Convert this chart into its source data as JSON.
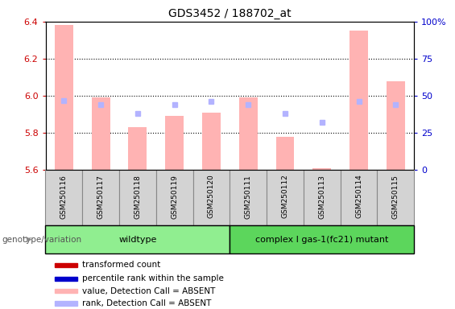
{
  "title": "GDS3452 / 188702_at",
  "samples": [
    "GSM250116",
    "GSM250117",
    "GSM250118",
    "GSM250119",
    "GSM250120",
    "GSM250111",
    "GSM250112",
    "GSM250113",
    "GSM250114",
    "GSM250115"
  ],
  "transformed_count": [
    6.38,
    5.99,
    5.83,
    5.89,
    5.91,
    5.99,
    5.78,
    5.61,
    6.35,
    6.08
  ],
  "percentile_rank": [
    47,
    44,
    38,
    44,
    46,
    44,
    38,
    32,
    46,
    44
  ],
  "detection_call": [
    "ABSENT",
    "ABSENT",
    "ABSENT",
    "ABSENT",
    "ABSENT",
    "ABSENT",
    "ABSENT",
    "ABSENT",
    "ABSENT",
    "ABSENT"
  ],
  "ylim_left": [
    5.6,
    6.4
  ],
  "ylim_right": [
    0,
    100
  ],
  "yticks_left": [
    5.6,
    5.8,
    6.0,
    6.2,
    6.4
  ],
  "yticks_right": [
    0,
    25,
    50,
    75,
    100
  ],
  "groups": [
    {
      "label": "wildtype",
      "start": 0,
      "end": 4,
      "color": "#90ee90"
    },
    {
      "label": "complex I gas-1(fc21) mutant",
      "start": 5,
      "end": 9,
      "color": "#5cd65c"
    }
  ],
  "bar_color_absent": "#ffb3b3",
  "rank_color_absent": "#b3b3ff",
  "bar_color_present": "#ff6666",
  "rank_color_present": "#6666ff",
  "group_label": "genotype/variation",
  "legend_items": [
    {
      "label": "transformed count",
      "color": "#cc0000"
    },
    {
      "label": "percentile rank within the sample",
      "color": "#0000cc"
    },
    {
      "label": "value, Detection Call = ABSENT",
      "color": "#ffb3b3"
    },
    {
      "label": "rank, Detection Call = ABSENT",
      "color": "#b3b3ff"
    }
  ],
  "left_tick_color": "#cc0000",
  "right_tick_color": "#0000cc",
  "grey_col_color": "#d3d3d3",
  "col_border_color": "#888888"
}
